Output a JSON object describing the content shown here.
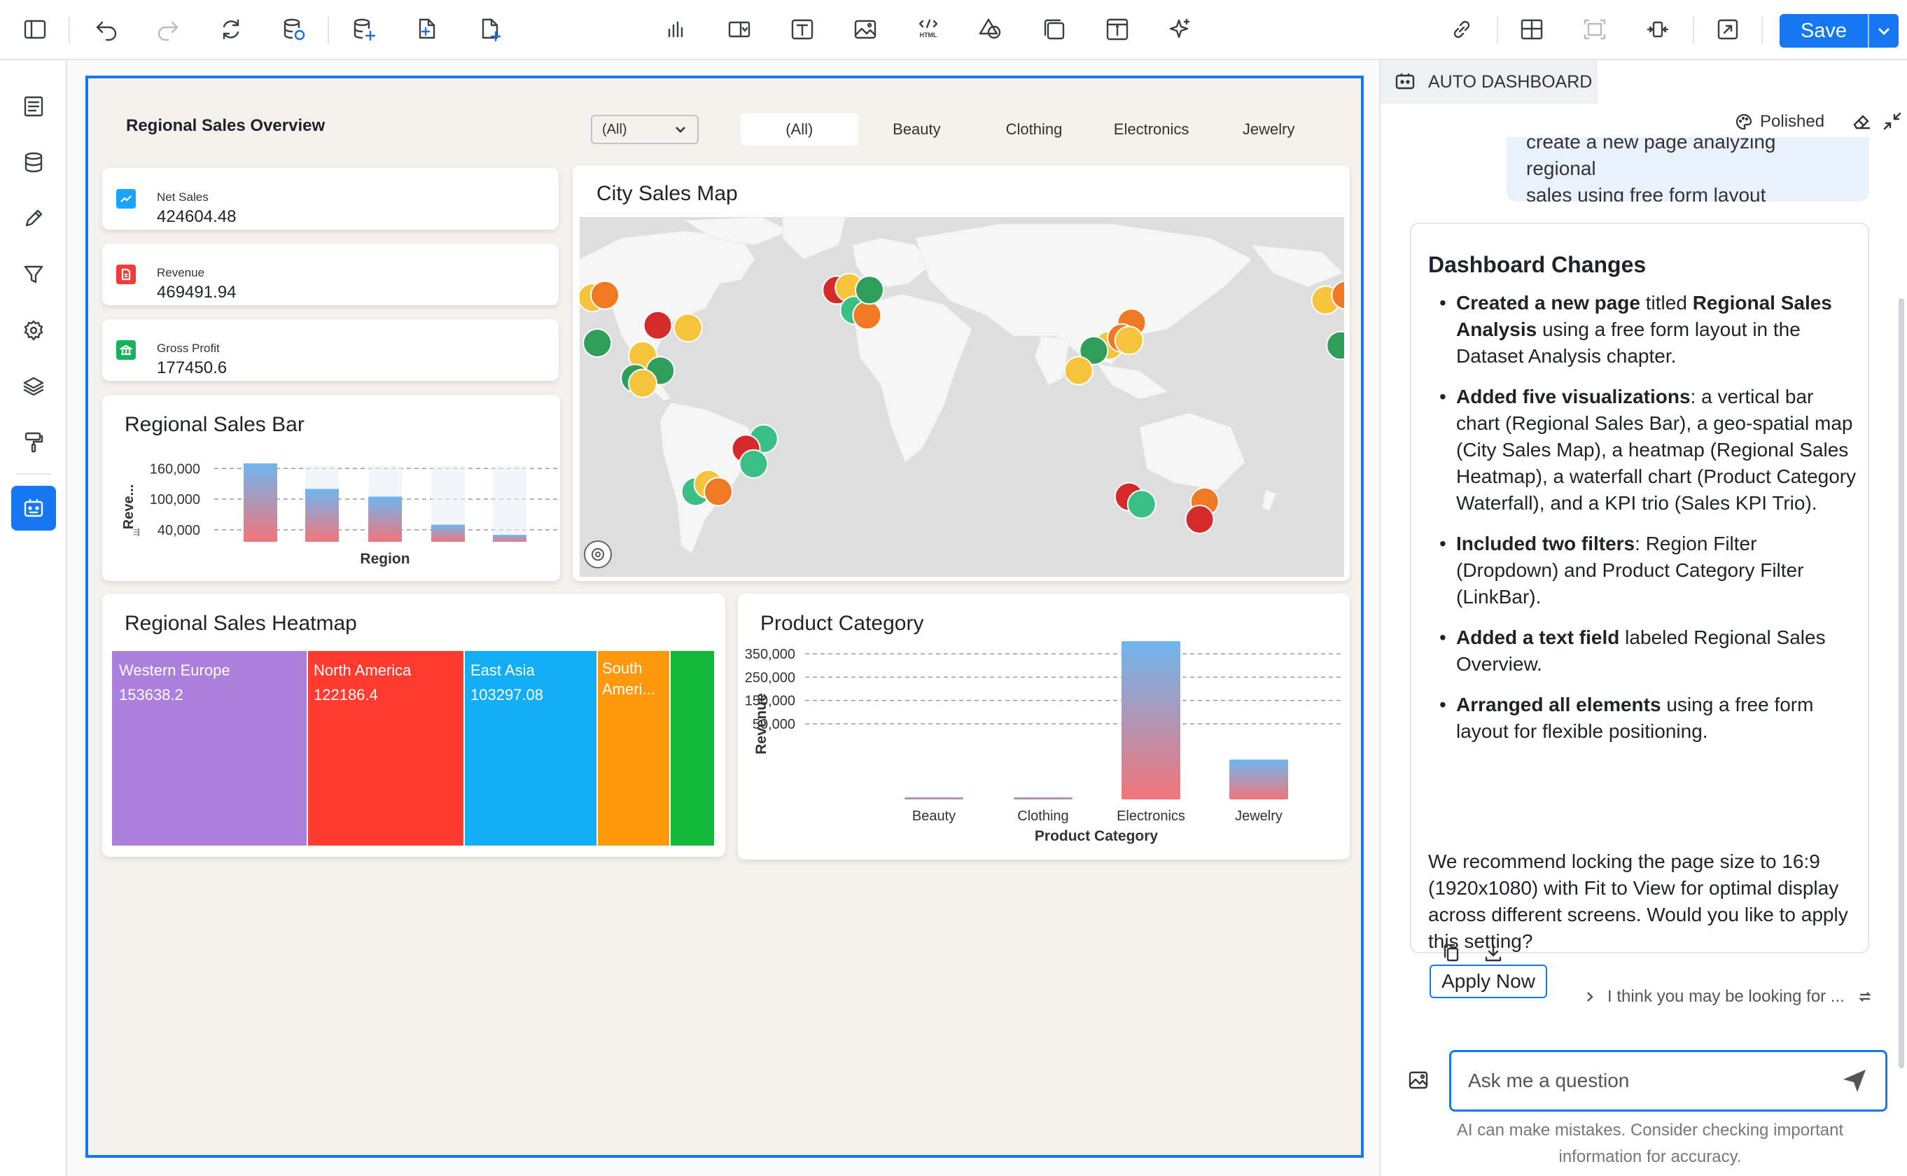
{
  "toolbar": {
    "save_label": "Save",
    "html_label": "HTML"
  },
  "dashboard": {
    "page_title": "Regional Sales Overview",
    "region_filter": {
      "selected": "(All)"
    },
    "category_linkbar": [
      "(All)",
      "Beauty",
      "Clothing",
      "Electronics",
      "Jewelry"
    ],
    "kpis": [
      {
        "label": "Net Sales",
        "value": "424604.48",
        "color": "#1aa3ff",
        "icon": "trend-icon"
      },
      {
        "label": "Revenue",
        "value": "469491.94",
        "color": "#f23a3a",
        "icon": "document-icon"
      },
      {
        "label": "Gross Profit",
        "value": "177450.6",
        "color": "#16b35c",
        "icon": "bank-icon"
      }
    ],
    "bar_chart": {
      "title": "Regional Sales Bar",
      "xlabel": "Region",
      "ylabel": "Reve...",
      "ticks": [
        "160,000",
        "100,000",
        "40,000"
      ]
    },
    "map": {
      "title": "City Sales Map"
    },
    "heatmap": {
      "title": "Regional Sales Heatmap",
      "cells": [
        {
          "name": "Western Europe",
          "value": "153638.2",
          "color": "#ab7fdc"
        },
        {
          "name": "North America",
          "value": "122186.4",
          "color": "#ff3a2e"
        },
        {
          "name": "East Asia",
          "value": "103297.08",
          "color": "#12adf5"
        },
        {
          "name": "South Ameri...",
          "value": "",
          "color": "#ff980d"
        },
        {
          "name": "",
          "value": "",
          "color": "#12b83a"
        }
      ]
    },
    "category_chart": {
      "title": "Product Category",
      "xlabel": "Product Category",
      "ylabel": "Revenue"
    }
  },
  "chart_data": [
    {
      "type": "bar",
      "title": "Product Category",
      "xlabel": "Product Category",
      "ylabel": "Revenue",
      "categories": [
        "Beauty",
        "Clothing",
        "Electronics",
        "Jewelry"
      ],
      "values": [
        3000,
        1500,
        350000,
        88000
      ],
      "ylim": [
        0,
        380000
      ],
      "ticks": [
        50000,
        150000,
        250000,
        350000
      ],
      "tick_labels": [
        "50,000",
        "150,000",
        "250,000",
        "350,000"
      ],
      "grid": true
    },
    {
      "type": "bar",
      "title": "Regional Sales Bar",
      "xlabel": "Region",
      "ylabel": "Reve...",
      "categories": [
        "",
        "",
        "",
        "",
        ""
      ],
      "values": [
        170000,
        120000,
        105000,
        50000,
        30000
      ],
      "ylim": [
        0,
        200000
      ],
      "ticks": [
        40000,
        100000,
        160000
      ],
      "tick_labels": [
        "40,000",
        "100,000",
        "160,000"
      ],
      "grid": true
    }
  ],
  "panel": {
    "tab_label": "AUTO DASHBOARD",
    "style_label": "Polished",
    "user_message_lines": [
      "create a new page analyzing regional",
      "sales using free form layout"
    ],
    "response_title": "Dashboard Changes",
    "response_items": [
      {
        "bold": "Created a new page",
        "rest": " titled ",
        "bold2": "Regional Sales Analysis",
        "rest2": " using a free form layout in the Dataset Analysis chapter."
      },
      {
        "bold": "Added five visualizations",
        "rest": ": a vertical bar chart (Regional Sales Bar), a geo-spatial map (City Sales Map), a heatmap (Regional Sales Heatmap), a waterfall chart (Product Category Waterfall), and a KPI trio (Sales KPI Trio).",
        "bold2": "",
        "rest2": ""
      },
      {
        "bold": "Included two filters",
        "rest": ": Region Filter (Dropdown) and Product Category Filter (LinkBar).",
        "bold2": "",
        "rest2": ""
      },
      {
        "bold": "Added a text field",
        "rest": " labeled Regional Sales Overview.",
        "bold2": "",
        "rest2": ""
      },
      {
        "bold": "Arranged all elements",
        "rest": " using a free form layout for flexible positioning.",
        "bold2": "",
        "rest2": ""
      }
    ],
    "recommendation": "We recommend locking the page size to 16:9 (1920x1080) with Fit to View for optimal display across different screens. Would you like to apply this setting?",
    "apply_label": "Apply Now",
    "suggestion": "I think you may be looking for ...",
    "ask_placeholder": "Ask me a question",
    "disclaimer": "AI can make mistakes. Consider checking important information for accuracy."
  }
}
